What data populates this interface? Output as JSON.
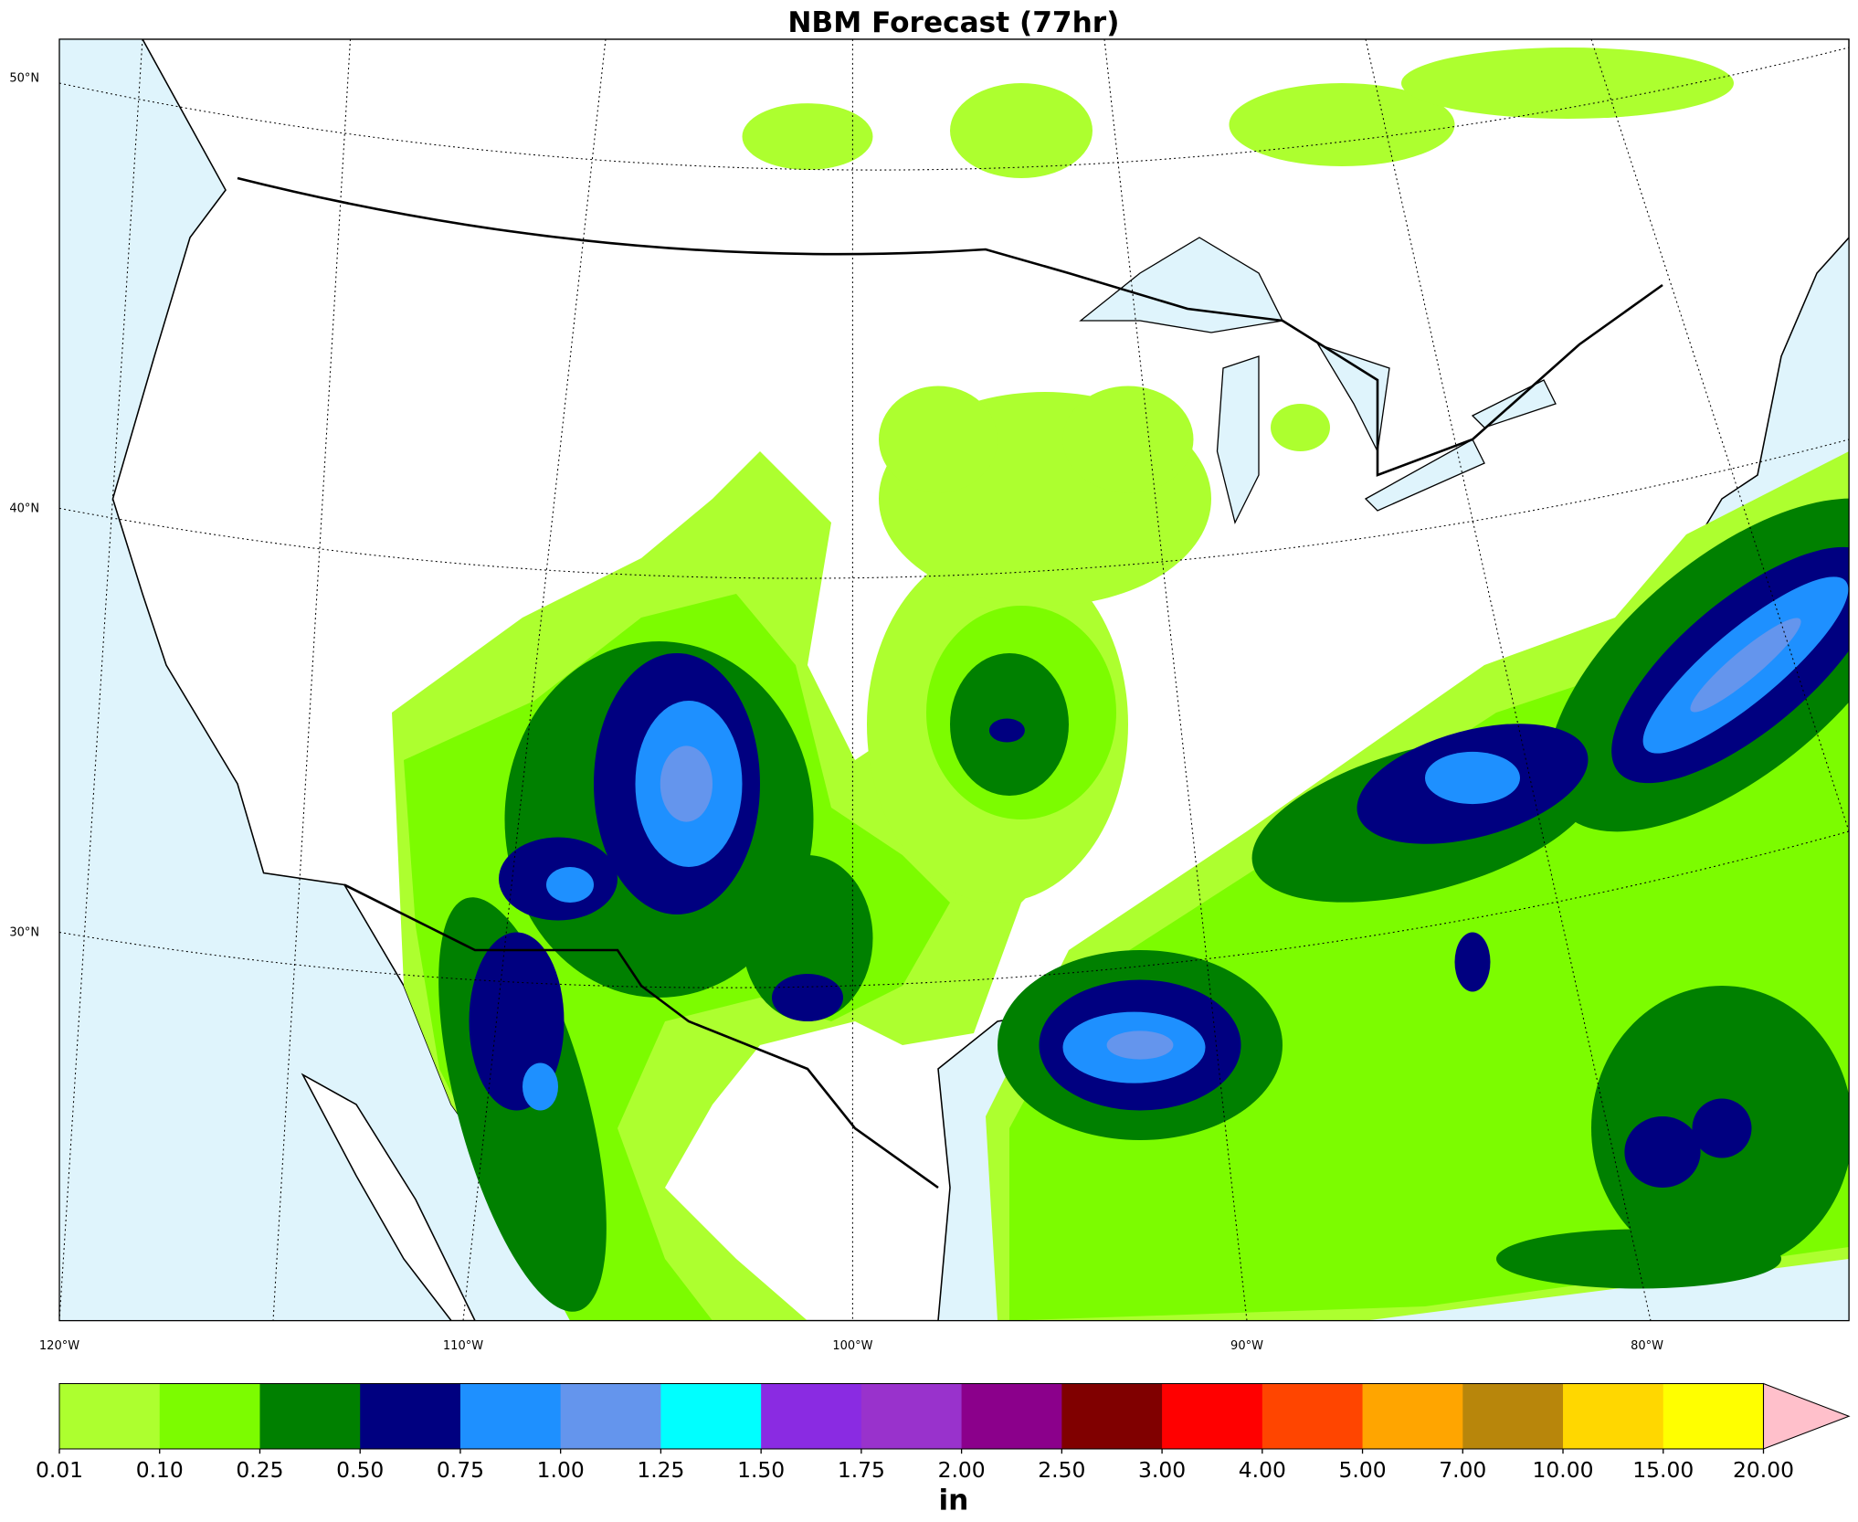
{
  "header": {
    "title": "NBM Forecast (77hr)"
  },
  "map": {
    "lat_labels": [
      "50°N",
      "40°N",
      "30°N"
    ],
    "lon_labels": [
      "120°W",
      "110°W",
      "100°W",
      "90°W",
      "80°W"
    ]
  },
  "colorbar": {
    "levels": [
      0.01,
      {
        "value": 0.1,
        "label": "0.10"
      },
      0.25,
      {
        "value": 0.5,
        "label": "0.50"
      },
      0.75,
      {
        "value": 1,
        "label": "1.00"
      },
      1.25,
      {
        "value": 1.5,
        "label": "1.50"
      },
      1.75,
      {
        "value": 2,
        "label": "2.00"
      },
      {
        "value": 2.5,
        "label": "2.50"
      },
      {
        "value": 3,
        "label": "3.00"
      },
      {
        "value": 4,
        "label": "4.00"
      },
      {
        "value": 5,
        "label": "5.00"
      },
      {
        "value": 7,
        "label": "7.00"
      },
      {
        "value": 10,
        "label": "10.00"
      },
      {
        "value": 15,
        "label": "15.00"
      },
      {
        "value": 20,
        "label": "20.00"
      }
    ],
    "colors": [
      "#adff2f",
      "#7cfc00",
      "#008000",
      "#000080",
      "#1e90ff",
      "#6495ed",
      "#00ffff",
      "#8a2be2",
      "#9932cc",
      "#8b008b",
      "#800000",
      "#ff0000",
      "#ff4500",
      "#ffa500",
      "#b8860b",
      "#ffd700",
      "#ffff00"
    ],
    "extend_color": "#ffc0cb",
    "unit": "in"
  }
}
